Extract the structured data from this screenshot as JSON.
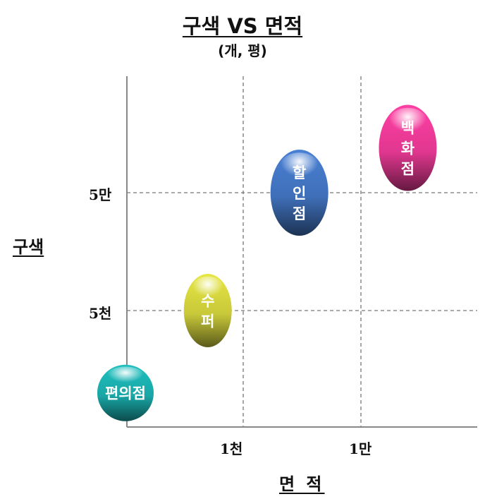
{
  "chart_data": {
    "type": "scatter",
    "title": "구색 VS 면적",
    "subtitle": "(개, 평)",
    "xlabel": "면 적",
    "ylabel": "구색",
    "x_ticks": [
      "1천",
      "1만"
    ],
    "y_ticks": [
      "5천",
      "5만"
    ],
    "x_scale": "log",
    "y_scale": "log",
    "grid": true,
    "points": [
      {
        "label": "편의점",
        "x": 100,
        "y": 1000,
        "color": "#1aa6a6"
      },
      {
        "label": "수퍼",
        "x": 500,
        "y": 5000,
        "color": "#c8c83a"
      },
      {
        "label": "할인점",
        "x": 3000,
        "y": 50000,
        "color": "#3f6fb8"
      },
      {
        "label": "백화점",
        "x": 25000,
        "y": 120000,
        "color": "#e0378f"
      }
    ]
  }
}
